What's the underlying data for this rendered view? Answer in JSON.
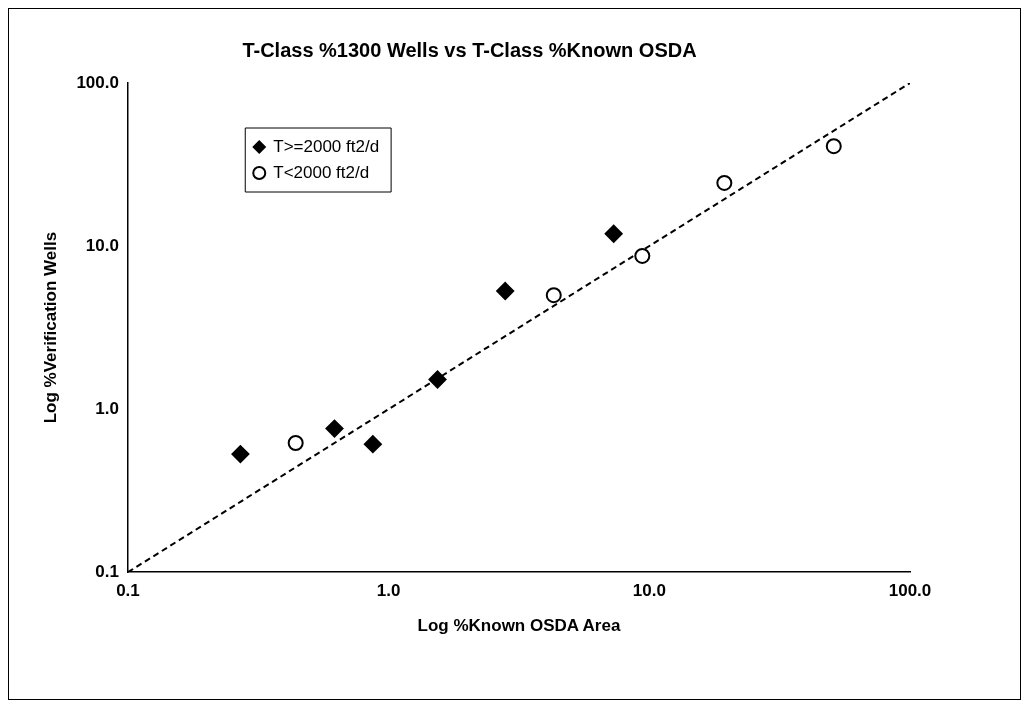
{
  "chart_data": {
    "type": "scatter",
    "title": "T-Class %1300 Wells vs T-Class %Known OSDA",
    "xlabel": "Log %Known OSDA Area",
    "ylabel": "Log %Verification Wells",
    "log": "xy",
    "xlim": [
      0.1,
      100
    ],
    "ylim": [
      0.1,
      100
    ],
    "xticks": [
      0.1,
      {
        "value": 1,
        "label": "1.0"
      },
      {
        "value": 10,
        "label": "10.0"
      },
      {
        "value": 100,
        "label": "100.0"
      }
    ],
    "yticks": [
      0.1,
      {
        "value": 1,
        "label": "1.0"
      },
      {
        "value": 10,
        "label": "10.0"
      },
      {
        "value": 100,
        "label": "100.0"
      }
    ],
    "grid": false,
    "legend": "top left",
    "series": [
      {
        "name": "T>=2000 ft2/d",
        "color": "#000000",
        "marker": "diamond",
        "x": [
          0.27,
          0.62,
          0.87,
          1.54,
          2.8,
          7.3
        ],
        "values": [
          0.53,
          0.76,
          0.61,
          1.52,
          5.3,
          11.9
        ]
      },
      {
        "name": "T<2000 ft2/d",
        "color": "#000000",
        "marker": "circle",
        "x": [
          0.44,
          4.3,
          9.4,
          19.4,
          51
        ],
        "values": [
          0.62,
          5.0,
          8.7,
          24.4,
          41
        ]
      },
      {
        "type": "line",
        "color": "#000000",
        "line_style": "dashed",
        "marker": "none",
        "x": [
          0.1,
          100
        ],
        "values": [
          0.1,
          100
        ]
      }
    ]
  }
}
